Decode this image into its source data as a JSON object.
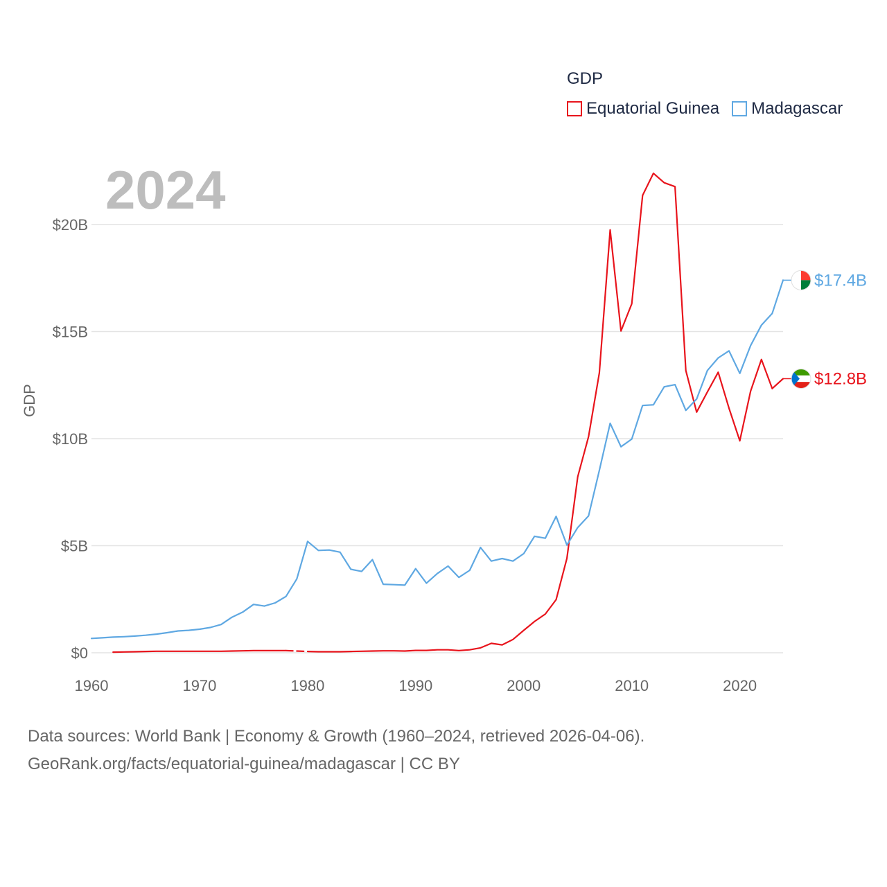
{
  "legend": {
    "title": "GDP",
    "items": [
      {
        "label": "Equatorial Guinea",
        "color": "#e8141c"
      },
      {
        "label": "Madagascar",
        "color": "#5fa8e2"
      }
    ]
  },
  "footer": {
    "line1": "Data sources: World Bank | Economy & Growth (1960–2024, retrieved 2026-04-06).",
    "line2": "GeoRank.org/facts/equatorial-guinea/madagascar | CC BY"
  },
  "chart_data": {
    "type": "line",
    "title": "GDP",
    "year_label": "2024",
    "xlabel": "",
    "ylabel": "GDP",
    "xlim": [
      1960,
      2024
    ],
    "ylim": [
      0,
      20
    ],
    "y_unit": "billion USD",
    "x_ticks": [
      1960,
      1970,
      1980,
      1990,
      2000,
      2010,
      2020
    ],
    "y_ticks": [
      {
        "value": 0,
        "label": "$0"
      },
      {
        "value": 5,
        "label": "$5B"
      },
      {
        "value": 10,
        "label": "$10B"
      },
      {
        "value": 15,
        "label": "$15B"
      },
      {
        "value": 20,
        "label": "$20B"
      }
    ],
    "series": [
      {
        "name": "Equatorial Guinea",
        "color": "#e8141c",
        "end_label": "$12.8B",
        "flag_colors": [
          "#3e9a00",
          "#ffffff",
          "#e32118",
          "#0073ce"
        ],
        "x": [
          1962,
          1963,
          1964,
          1965,
          1966,
          1967,
          1968,
          1969,
          1970,
          1971,
          1972,
          1973,
          1974,
          1975,
          1976,
          1977,
          1978,
          1979,
          1980,
          1981,
          1982,
          1983,
          1984,
          1985,
          1986,
          1987,
          1988,
          1989,
          1990,
          1991,
          1992,
          1993,
          1994,
          1995,
          1996,
          1997,
          1998,
          1999,
          2000,
          2001,
          2002,
          2003,
          2004,
          2005,
          2006,
          2007,
          2008,
          2009,
          2010,
          2011,
          2012,
          2013,
          2014,
          2015,
          2016,
          2017,
          2018,
          2019,
          2020,
          2021,
          2022,
          2023,
          2024
        ],
        "values": [
          0.03,
          0.04,
          0.05,
          0.06,
          0.07,
          0.07,
          0.07,
          0.07,
          0.07,
          0.07,
          0.07,
          0.08,
          0.09,
          0.1,
          0.1,
          0.1,
          0.1,
          0.08,
          0.06,
          0.05,
          0.05,
          0.05,
          0.06,
          0.07,
          0.08,
          0.09,
          0.09,
          0.08,
          0.11,
          0.11,
          0.14,
          0.14,
          0.1,
          0.14,
          0.23,
          0.44,
          0.37,
          0.62,
          1.05,
          1.46,
          1.81,
          2.48,
          4.41,
          8.22,
          10.09,
          13.07,
          19.75,
          15.03,
          16.3,
          21.36,
          22.39,
          21.95,
          21.77,
          13.18,
          11.24,
          12.18,
          13.1,
          11.42,
          9.9,
          12.22,
          13.7,
          12.34,
          12.8
        ],
        "gaps": [
          [
            1978,
            1980
          ]
        ]
      },
      {
        "name": "Madagascar",
        "color": "#5fa8e2",
        "end_label": "$17.4B",
        "flag_colors": [
          "#ffffff",
          "#fc3d32",
          "#007e3a"
        ],
        "x": [
          1960,
          1961,
          1962,
          1963,
          1964,
          1965,
          1966,
          1967,
          1968,
          1969,
          1970,
          1971,
          1972,
          1973,
          1974,
          1975,
          1976,
          1977,
          1978,
          1979,
          1980,
          1981,
          1982,
          1983,
          1984,
          1985,
          1986,
          1987,
          1988,
          1989,
          1990,
          1991,
          1992,
          1993,
          1994,
          1995,
          1996,
          1997,
          1998,
          1999,
          2000,
          2001,
          2002,
          2003,
          2004,
          2005,
          2006,
          2007,
          2008,
          2009,
          2010,
          2011,
          2012,
          2013,
          2014,
          2015,
          2016,
          2017,
          2018,
          2019,
          2020,
          2021,
          2022,
          2023,
          2024
        ],
        "values": [
          0.67,
          0.7,
          0.73,
          0.75,
          0.78,
          0.82,
          0.87,
          0.94,
          1.02,
          1.05,
          1.1,
          1.18,
          1.32,
          1.66,
          1.9,
          2.26,
          2.18,
          2.33,
          2.63,
          3.45,
          5.2,
          4.78,
          4.8,
          4.7,
          3.9,
          3.8,
          4.35,
          3.2,
          3.18,
          3.16,
          3.93,
          3.25,
          3.7,
          4.05,
          3.52,
          3.85,
          4.92,
          4.28,
          4.4,
          4.28,
          4.63,
          5.44,
          5.35,
          6.37,
          5.03,
          5.85,
          6.39,
          8.52,
          10.72,
          9.62,
          9.98,
          11.55,
          11.58,
          12.42,
          12.52,
          11.32,
          11.85,
          13.18,
          13.77,
          14.1,
          13.05,
          14.35,
          15.3,
          15.85,
          17.4
        ]
      }
    ]
  }
}
